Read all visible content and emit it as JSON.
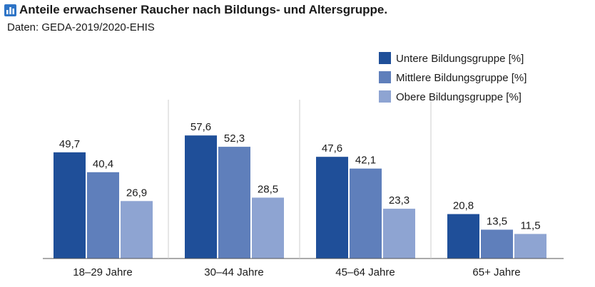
{
  "chart_data": {
    "type": "bar",
    "title": "Anteile erwachsener Raucher nach Bildungs- und Altersgruppe.",
    "subtitle": "Daten: GEDA-2019/2020-EHIS",
    "icon": "bar-chart-icon",
    "categories": [
      "18–29 Jahre",
      "30–44 Jahre",
      "45–64 Jahre",
      "65+ Jahre"
    ],
    "series": [
      {
        "name": "Untere Bildungsgruppe [%]",
        "color": "#1f4f99",
        "values": [
          49.7,
          57.6,
          47.6,
          20.8
        ],
        "labels": [
          "49,7",
          "57,6",
          "47,6",
          "20,8"
        ]
      },
      {
        "name": "Mittlere Bildungsgruppe [%]",
        "color": "#5f7fbb",
        "values": [
          40.4,
          52.3,
          42.1,
          13.5
        ],
        "labels": [
          "40,4",
          "52,3",
          "42,1",
          "13,5"
        ]
      },
      {
        "name": "Obere Bildungsgruppe [%]",
        "color": "#8ea4d2",
        "values": [
          26.9,
          28.5,
          23.3,
          11.5
        ],
        "labels": [
          "26,9",
          "28,5",
          "23,3",
          "11,5"
        ]
      }
    ],
    "xlabel": "",
    "ylabel": "",
    "ylim": [
      0,
      60
    ],
    "grid": false,
    "legend": "top-right"
  }
}
